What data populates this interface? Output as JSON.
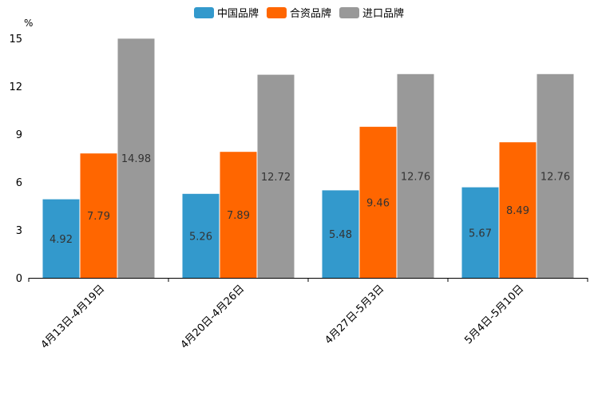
{
  "chart_data": {
    "type": "bar",
    "title": "",
    "ylabel": "%",
    "xlabel": "",
    "categories": [
      "4月13日-4月19日",
      "4月20日-4月26日",
      "4月27日-5月3日",
      "5月4日-5月10日"
    ],
    "series": [
      {
        "name": "中国品牌",
        "color": "#3399cc",
        "values": [
          4.92,
          5.26,
          5.48,
          5.67
        ]
      },
      {
        "name": "合资品牌",
        "color": "#ff6600",
        "values": [
          7.79,
          7.89,
          9.46,
          8.49
        ]
      },
      {
        "name": "进口品牌",
        "color": "#999999",
        "values": [
          14.98,
          12.72,
          12.76,
          12.76
        ]
      }
    ],
    "ylim": [
      0,
      15
    ],
    "yticks": [
      0,
      3,
      6,
      9,
      12,
      15
    ],
    "ytick_labels": [
      "0",
      "3",
      "6",
      "9",
      "12",
      "15"
    ],
    "grid": false,
    "legend_position": "top-center"
  }
}
